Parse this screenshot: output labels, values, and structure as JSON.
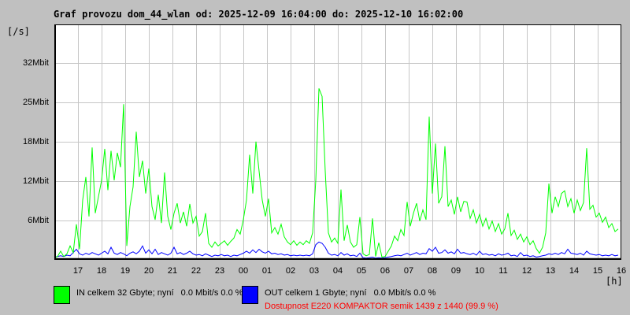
{
  "colors": {
    "background": "#c0c0c0",
    "plot_background": "#ffffff",
    "grid": "#c6c6c6",
    "border": "#000000",
    "in_series": "#00ff00",
    "out_series": "#0000ff",
    "availability_text": "#ff0000",
    "text": "#000000"
  },
  "legend": {
    "in": {
      "label": "IN celkem 32 Gbyte; nyní   0.0 Mbit/s 0.0 %",
      "color": "#00ff00"
    },
    "out": {
      "label": "OUT celkem 1 Gbyte; nyní   0.0 Mbit/s 0.0 %",
      "color": "#0000ff"
    },
    "availability": {
      "label": "Dostupnost E220 KOMPAKTOR semik 1439 z 1440 (99.9 %)",
      "color": "#ff0000"
    }
  },
  "chart_data": {
    "type": "line",
    "title": "Graf provozu dom_44_wlan od: 2025-12-09 16:04:00 do: 2025-12-10 16:02:00",
    "y_axis_unit": "[/s]",
    "x_axis_unit": "[h]",
    "time_start": "2025-12-09 16:04:00",
    "time_end": "2025-12-10 16:02:00",
    "ylim": [
      0,
      36
    ],
    "grid": true,
    "legend_position": "bottom",
    "y_ticks": [
      {
        "label": "32Mbit"
      },
      {
        "label": "25Mbit"
      },
      {
        "label": "18Mbit"
      },
      {
        "label": "12Mbit"
      },
      {
        "label": "6Mbit"
      }
    ],
    "x_ticks": [
      "17",
      "18",
      "19",
      "20",
      "21",
      "22",
      "23",
      "00",
      "01",
      "02",
      "03",
      "04",
      "05",
      "06",
      "07",
      "08",
      "09",
      "10",
      "11",
      "12",
      "13",
      "14",
      "15",
      "16"
    ],
    "sample_interval_minutes": 8,
    "unit": "Mbit/s",
    "series": [
      {
        "name": "IN",
        "color": "#00ff00",
        "values": [
          0.2,
          0.4,
          1.2,
          0.4,
          0.8,
          2.0,
          1.0,
          5.3,
          1.5,
          9.0,
          12.5,
          6.5,
          17.0,
          7.0,
          9.5,
          12.0,
          16.8,
          10.5,
          16.5,
          12.0,
          16.2,
          14.0,
          23.6,
          2.0,
          8.0,
          11.0,
          19.4,
          12.5,
          15.0,
          10.0,
          13.8,
          8.0,
          6.0,
          9.8,
          5.5,
          13.2,
          6.5,
          4.5,
          7.0,
          8.5,
          5.5,
          7.2,
          5.0,
          8.4,
          5.5,
          6.5,
          3.5,
          4.2,
          7.0,
          2.4,
          1.8,
          2.6,
          2.0,
          2.4,
          2.8,
          2.1,
          2.7,
          3.2,
          4.5,
          3.8,
          6.0,
          9.0,
          15.9,
          10.0,
          17.9,
          13.4,
          9.0,
          6.5,
          9.2,
          4.0,
          4.8,
          3.8,
          5.3,
          3.4,
          2.6,
          2.2,
          2.8,
          2.1,
          2.6,
          2.2,
          2.8,
          2.4,
          4.0,
          12.0,
          26.0,
          24.8,
          13.4,
          4.0,
          2.6,
          3.2,
          2.4,
          10.6,
          2.8,
          5.2,
          2.6,
          1.8,
          2.2,
          6.4,
          0.8,
          0.5,
          0.7,
          6.2,
          0.4,
          2.5,
          0.3,
          0.4,
          1.2,
          2.0,
          3.5,
          2.8,
          4.5,
          3.6,
          8.7,
          5.0,
          7.0,
          8.5,
          5.8,
          7.5,
          6.0,
          21.7,
          10.0,
          17.6,
          8.5,
          9.5,
          17.2,
          8.0,
          9.0,
          6.8,
          9.5,
          7.2,
          8.8,
          8.7,
          6.2,
          7.5,
          5.5,
          6.8,
          5.0,
          6.2,
          4.6,
          5.8,
          4.2,
          5.4,
          3.8,
          4.6,
          7.0,
          3.6,
          4.4,
          3.0,
          3.8,
          2.6,
          3.4,
          2.2,
          2.8,
          1.6,
          0.9,
          1.8,
          4.0,
          11.5,
          7.0,
          9.5,
          8.0,
          10.0,
          10.4,
          8.0,
          9.2,
          7.0,
          9.0,
          7.4,
          8.6,
          16.9,
          7.6,
          8.2,
          6.4,
          7.0,
          5.6,
          6.4,
          4.8,
          5.4,
          4.2,
          4.6
        ]
      },
      {
        "name": "OUT",
        "color": "#0000ff",
        "values": [
          0.3,
          0.4,
          0.5,
          0.4,
          0.6,
          0.5,
          1.0,
          1.5,
          0.8,
          0.6,
          0.9,
          0.7,
          1.0,
          0.8,
          0.6,
          0.9,
          1.2,
          0.8,
          1.8,
          0.9,
          0.7,
          1.0,
          0.8,
          0.5,
          0.9,
          1.1,
          0.8,
          1.2,
          2.0,
          0.9,
          1.4,
          0.8,
          1.5,
          0.7,
          1.0,
          0.8,
          0.6,
          0.9,
          1.8,
          0.8,
          1.0,
          0.7,
          0.9,
          1.2,
          0.8,
          0.6,
          0.7,
          0.5,
          0.8,
          0.6,
          0.4,
          0.6,
          0.5,
          0.7,
          0.5,
          0.6,
          0.4,
          0.6,
          0.5,
          0.7,
          0.9,
          1.2,
          0.9,
          1.4,
          1.0,
          1.5,
          1.1,
          0.9,
          1.2,
          0.8,
          0.9,
          0.7,
          0.8,
          0.6,
          0.7,
          0.5,
          0.6,
          0.5,
          0.6,
          0.5,
          0.6,
          0.5,
          0.8,
          2.2,
          2.6,
          2.4,
          1.8,
          0.9,
          0.6,
          0.7,
          0.5,
          1.0,
          0.6,
          0.8,
          0.5,
          0.6,
          0.4,
          0.9,
          0.2,
          0.15,
          0.2,
          0.3,
          0.15,
          0.2,
          0.15,
          0.2,
          0.3,
          0.4,
          0.5,
          0.6,
          0.5,
          0.7,
          0.9,
          0.6,
          0.8,
          1.0,
          0.7,
          0.9,
          0.8,
          1.6,
          1.2,
          1.8,
          0.9,
          1.0,
          1.4,
          0.9,
          1.1,
          0.8,
          1.5,
          0.9,
          1.0,
          0.8,
          0.7,
          0.9,
          0.6,
          1.2,
          0.7,
          0.8,
          0.6,
          0.7,
          0.5,
          0.8,
          0.6,
          0.7,
          0.9,
          0.5,
          0.6,
          0.4,
          1.0,
          0.5,
          0.6,
          0.4,
          0.5,
          0.3,
          0.4,
          0.5,
          0.6,
          0.8,
          0.7,
          0.9,
          0.7,
          1.0,
          0.8,
          1.5,
          0.9,
          0.8,
          0.7,
          0.9,
          0.6,
          1.2,
          0.8,
          0.7,
          0.6,
          0.7,
          0.5,
          0.6,
          0.5,
          0.7,
          0.5,
          0.6
        ]
      }
    ]
  }
}
